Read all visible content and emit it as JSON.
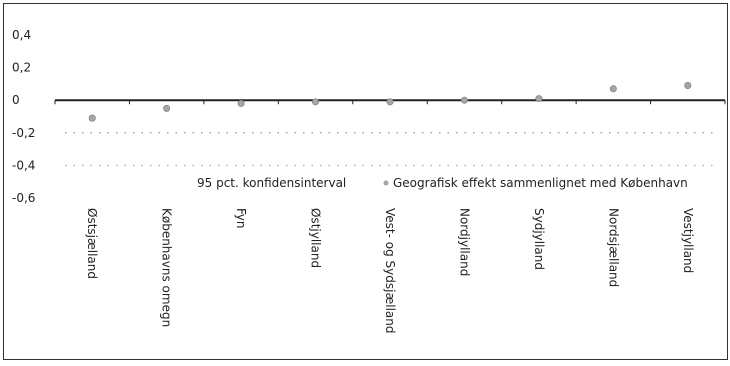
{
  "chart_data": {
    "type": "scatter",
    "categories": [
      "Østsjælland",
      "Københavns omegn",
      "Fyn",
      "Østjylland",
      "Vest- og Sydsjælland",
      "Nordjylland",
      "Sydjylland",
      "Nordsjælland",
      "Vestjylland"
    ],
    "series": [
      {
        "name": "Geografisk effekt sammenlignet med København",
        "values": [
          -0.11,
          -0.05,
          -0.02,
          -0.01,
          -0.01,
          0.0,
          0.01,
          0.07,
          0.09
        ],
        "color": "#a6a6a6"
      }
    ],
    "interval_label": "95 pct. konfidensinterval",
    "interval_bands": [
      {
        "lo": -0.2,
        "hi": -0.2
      },
      {
        "lo": -0.4,
        "hi": -0.2
      }
    ],
    "yticks": [
      "0,4",
      "0,2",
      "0",
      "-0,2",
      "-0,4",
      "-0,6"
    ],
    "ytick_values": [
      0.4,
      0.2,
      0,
      -0.2,
      -0.4,
      -0.6
    ],
    "ylim": [
      -0.6,
      0.4
    ],
    "xlabel": "",
    "ylabel": "",
    "title": "",
    "legend_position": "bottom-inside",
    "grid": false
  }
}
